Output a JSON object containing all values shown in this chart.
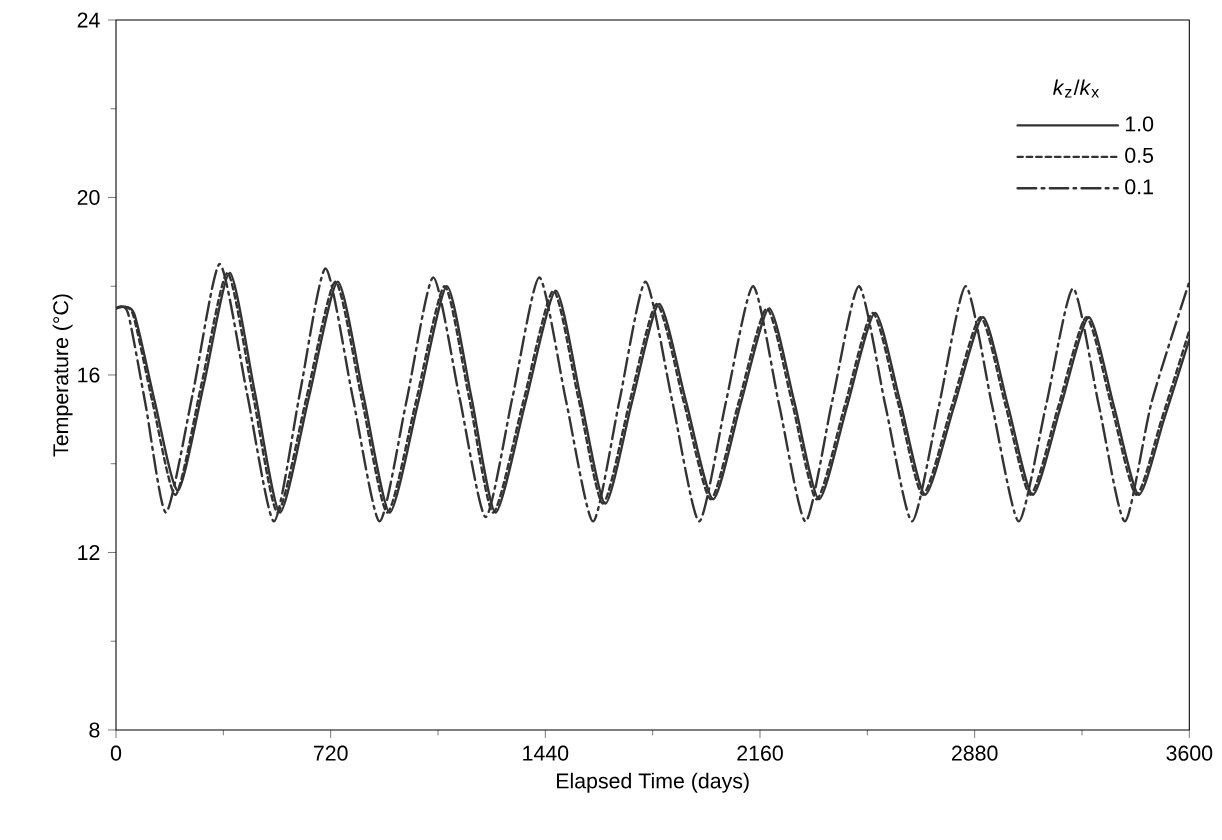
{
  "chart_data": {
    "type": "line",
    "xlabel": "Elapsed Time (days)",
    "ylabel": "Temperature (°C)",
    "legend_title": "*k*$_{z}$/*k*$_{x}$",
    "xlim": [
      0,
      3600
    ],
    "ylim": [
      8,
      24
    ],
    "xticks": [
      0,
      720,
      1440,
      2160,
      2880,
      3600
    ],
    "yticks": [
      8,
      12,
      16,
      20,
      24
    ],
    "grid": false,
    "legend": "top right",
    "marker": "none",
    "series": [
      {
        "name": "1.0",
        "color": "#333333",
        "line_style": "solid",
        "x": [
          0,
          60,
          130,
          208,
          295,
          382,
          466,
          550,
          647,
          744,
          831,
          918,
          1014,
          1110,
          1192,
          1273,
          1374,
          1475,
          1558,
          1641,
          1731,
          1822,
          1912,
          2003,
          2097,
          2191,
          2275,
          2358,
          2452,
          2546,
          2630,
          2714,
          2811,
          2908,
          2992,
          3075,
          3169,
          3263,
          3347,
          3430,
          3515,
          3600
        ],
        "values": [
          17.5,
          17.4,
          15.4,
          13.4,
          15.8,
          18.3,
          15.6,
          12.9,
          15.5,
          18.1,
          15.5,
          12.9,
          15.4,
          18.0,
          15.5,
          12.9,
          15.4,
          17.9,
          15.5,
          13.1,
          15.4,
          17.6,
          15.4,
          13.2,
          15.4,
          17.5,
          15.4,
          13.2,
          15.3,
          17.4,
          15.4,
          13.3,
          15.3,
          17.3,
          15.3,
          13.3,
          15.3,
          17.3,
          15.3,
          13.3,
          15.0,
          16.8
        ]
      },
      {
        "name": "0.5",
        "color": "#333333",
        "line_style": "dashed",
        "x": [
          0,
          55,
          122,
          200,
          287,
          374,
          458,
          542,
          639,
          736,
          823,
          910,
          1006,
          1102,
          1184,
          1265,
          1366,
          1467,
          1550,
          1633,
          1723,
          1814,
          1904,
          1995,
          2089,
          2183,
          2267,
          2350,
          2444,
          2538,
          2622,
          2706,
          2803,
          2900,
          2984,
          3067,
          3161,
          3255,
          3339,
          3422,
          3507,
          3600
        ],
        "values": [
          17.5,
          17.4,
          15.4,
          13.3,
          15.8,
          18.3,
          15.6,
          12.9,
          15.5,
          18.1,
          15.5,
          12.9,
          15.4,
          18.0,
          15.5,
          12.9,
          15.4,
          17.9,
          15.5,
          13.1,
          15.4,
          17.6,
          15.4,
          13.2,
          15.4,
          17.5,
          15.4,
          13.2,
          15.3,
          17.4,
          15.4,
          13.3,
          15.3,
          17.3,
          15.3,
          13.3,
          15.3,
          17.3,
          15.3,
          13.3,
          15.0,
          17.0
        ]
      },
      {
        "name": "0.1",
        "color": "#333333",
        "line_style": "dashdot",
        "x": [
          0,
          40,
          100,
          168,
          258,
          348,
          439,
          530,
          617,
          703,
          794,
          884,
          974,
          1064,
          1152,
          1240,
          1330,
          1420,
          1510,
          1600,
          1688,
          1776,
          1866,
          1956,
          2046,
          2137,
          2225,
          2313,
          2402,
          2492,
          2581,
          2670,
          2760,
          2850,
          2939,
          3028,
          3119,
          3210,
          3297,
          3384,
          3474,
          3600
        ],
        "values": [
          17.5,
          17.4,
          15.3,
          12.9,
          15.6,
          18.5,
          15.6,
          12.7,
          15.6,
          18.4,
          15.5,
          12.7,
          15.4,
          18.2,
          15.5,
          12.8,
          15.5,
          18.2,
          15.4,
          12.7,
          15.4,
          18.1,
          15.4,
          12.7,
          15.4,
          18.0,
          15.3,
          12.7,
          15.4,
          18.0,
          15.3,
          12.7,
          15.3,
          18.0,
          15.3,
          12.7,
          15.3,
          17.95,
          15.3,
          12.7,
          15.4,
          18.1
        ]
      }
    ]
  }
}
